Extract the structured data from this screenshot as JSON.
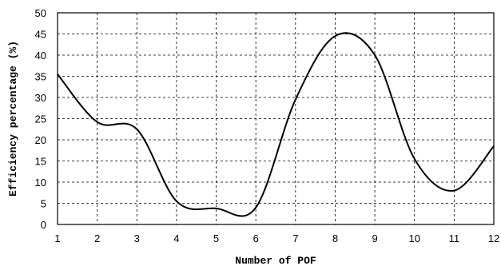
{
  "chart_data": {
    "type": "line",
    "title": "",
    "xlabel": "Number of POF",
    "ylabel": "Efficiency percentage (%)",
    "xlim": [
      1,
      12
    ],
    "ylim": [
      0,
      50
    ],
    "x_ticks": [
      1,
      2,
      3,
      4,
      5,
      6,
      7,
      8,
      9,
      10,
      11,
      12
    ],
    "y_ticks": [
      0,
      5,
      10,
      15,
      20,
      25,
      30,
      35,
      40,
      45,
      50
    ],
    "grid": true,
    "legend": "none",
    "series": [
      {
        "x": [
          1,
          2,
          3,
          4,
          5,
          6,
          7,
          8,
          9,
          10,
          11,
          12
        ],
        "values": [
          35.5,
          24.2,
          22.5,
          5.5,
          3.8,
          4.0,
          29.5,
          44.5,
          40.0,
          15.5,
          8.0,
          18.5
        ],
        "color": "#000000"
      }
    ]
  }
}
